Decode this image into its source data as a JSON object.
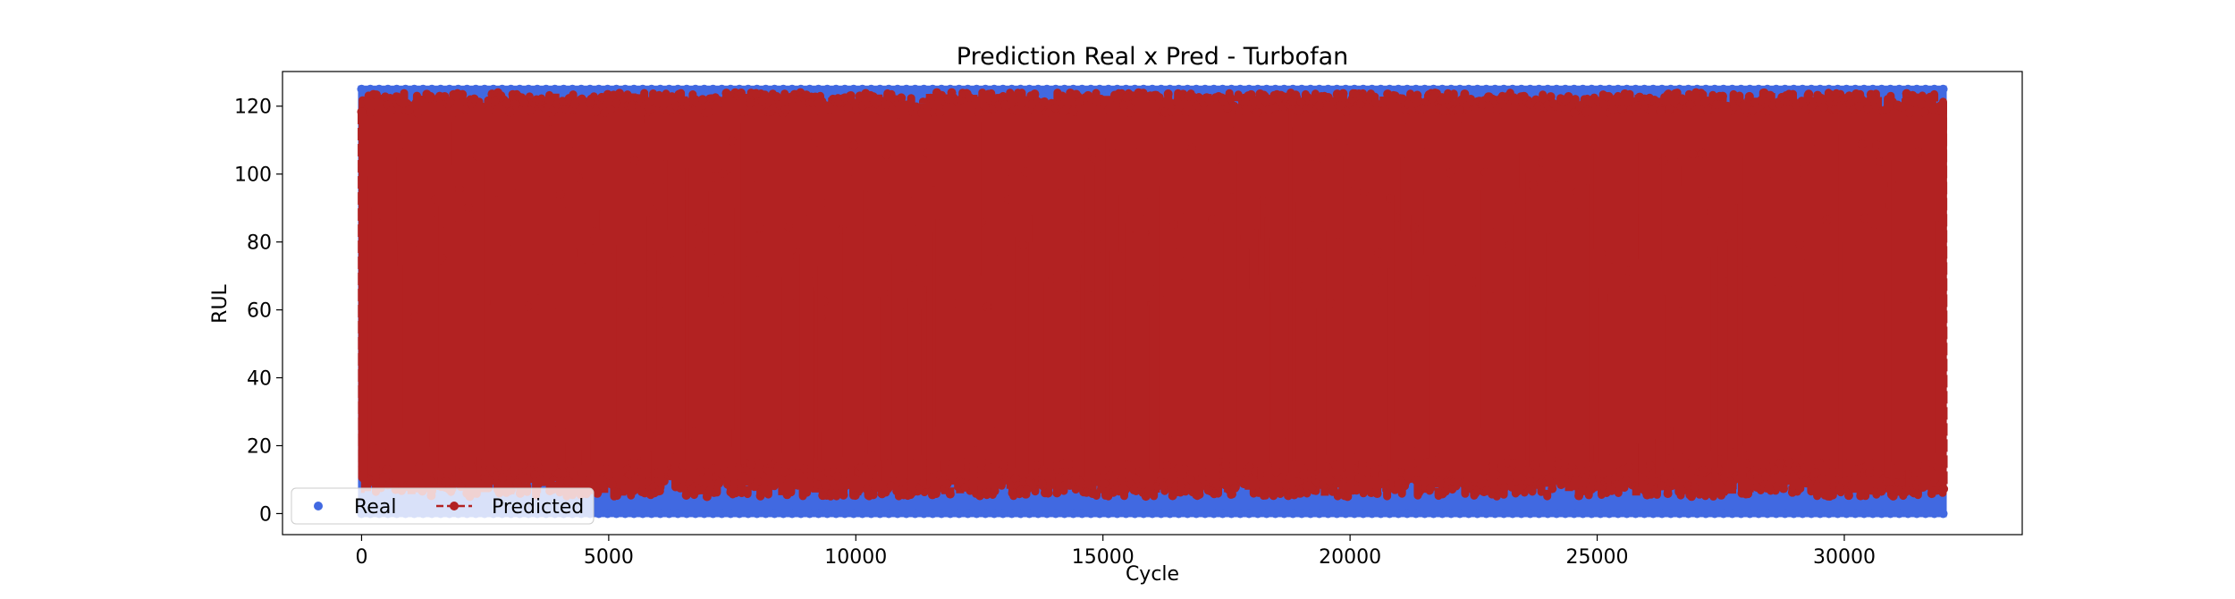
{
  "chart_data": {
    "type": "scatter",
    "title": "Prediction Real x Pred - Turbofan",
    "xlabel": "Cycle",
    "ylabel": "RUL",
    "xlim": [
      -1600,
      33600
    ],
    "ylim": [
      -6.2,
      130.2
    ],
    "x_ticks": [
      0,
      5000,
      10000,
      15000,
      20000,
      25000,
      30000
    ],
    "y_ticks": [
      0,
      20,
      40,
      60,
      80,
      100,
      120
    ],
    "x_tick_labels": [
      "0",
      "5000",
      "10000",
      "15000",
      "20000",
      "25000",
      "30000"
    ],
    "y_tick_labels": [
      "0",
      "20",
      "40",
      "60",
      "80",
      "100",
      "120"
    ],
    "x_range": [
      0,
      32000
    ],
    "grid": false,
    "legend_position": "lower-left",
    "series": [
      {
        "name": "Real",
        "color": "#4169E1",
        "marker": "circle",
        "y_range": [
          0,
          125
        ],
        "description": "dense sawtooth RUL per engine, capped at 125"
      },
      {
        "name": "Predicted",
        "color": "#B22222",
        "marker": "circle",
        "line_style": "dashed",
        "y_range": [
          3,
          124
        ]
      }
    ]
  }
}
